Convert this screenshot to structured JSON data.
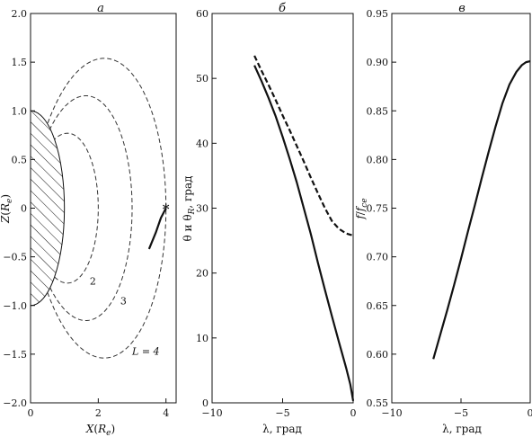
{
  "chart_data": [
    {
      "panel": "а",
      "type": "line",
      "xlabel": "X(R_e)",
      "ylabel": "Z(R_e)",
      "xlim": [
        0,
        4.3
      ],
      "ylim": [
        -2.0,
        2.0
      ],
      "xticks": [
        "0",
        "2",
        "4"
      ],
      "yticks": [
        "2.0",
        "1.5",
        "1.0",
        "0.5",
        "0",
        "−0.5",
        "−1.0",
        "−1.5",
        "−2.0"
      ],
      "earth": {
        "radius": 1,
        "hatched": true
      },
      "field_lines": [
        {
          "L": 2,
          "label": "2",
          "label_pos": [
            1.75,
            -0.75
          ],
          "style": "dashed"
        },
        {
          "L": 3,
          "label": "3",
          "label_pos": [
            2.65,
            -0.95
          ],
          "style": "dashed"
        },
        {
          "L": 4,
          "label": "L = 4",
          "label_pos": [
            3.0,
            -1.47
          ],
          "style": "dashed"
        }
      ],
      "ray_path": {
        "points": [
          [
            3.5,
            -0.42
          ],
          [
            3.7,
            -0.25
          ],
          [
            3.85,
            -0.1
          ],
          [
            4.0,
            0.0
          ]
        ],
        "start_marker": {
          "x": 4.0,
          "y": 0.0,
          "symbol": "*"
        }
      }
    },
    {
      "panel": "б",
      "type": "line",
      "xlabel": "λ, град",
      "ylabel": "θ и θR, град",
      "xlim": [
        -10,
        0
      ],
      "ylim": [
        0,
        60
      ],
      "xticks": [
        "−10",
        "−5",
        "0"
      ],
      "yticks": [
        "0",
        "10",
        "20",
        "30",
        "40",
        "50",
        "60"
      ],
      "series": [
        {
          "style": "solid",
          "x": [
            -7.0,
            -6.5,
            -6.0,
            -5.5,
            -5.0,
            -4.5,
            -4.0,
            -3.5,
            -3.0,
            -2.5,
            -2.0,
            -1.5,
            -1.0,
            -0.5,
            -0.2,
            0.0
          ],
          "y": [
            52.0,
            49.6,
            47.0,
            44.2,
            41.0,
            37.6,
            34.0,
            30.0,
            26.0,
            21.6,
            17.4,
            13.3,
            9.3,
            5.4,
            2.8,
            0.3
          ]
        },
        {
          "style": "dashed",
          "x": [
            -7.0,
            -6.5,
            -6.0,
            -5.5,
            -5.0,
            -4.5,
            -4.0,
            -3.5,
            -3.0,
            -2.5,
            -2.0,
            -1.5,
            -1.0,
            -0.5,
            -0.2,
            0.0
          ],
          "y": [
            53.5,
            51.2,
            49.0,
            46.7,
            44.3,
            42.0,
            39.6,
            37.2,
            34.7,
            32.3,
            30.0,
            28.0,
            26.8,
            26.1,
            25.9,
            25.8
          ]
        }
      ]
    },
    {
      "panel": "в",
      "type": "line",
      "xlabel": "λ, град",
      "ylabel": "f/f_ce",
      "xlim": [
        -10,
        0
      ],
      "ylim": [
        0.55,
        0.95
      ],
      "xticks": [
        "−10",
        "−5",
        "0"
      ],
      "yticks": [
        "0.55",
        "0.60",
        "0.65",
        "0.70",
        "0.75",
        "0.80",
        "0.85",
        "0.90",
        "0.95"
      ],
      "series": [
        {
          "style": "solid",
          "x": [
            -7.0,
            -6.5,
            -6.0,
            -5.5,
            -5.0,
            -4.5,
            -4.0,
            -3.5,
            -3.0,
            -2.5,
            -2.0,
            -1.5,
            -1.0,
            -0.6,
            -0.3,
            0.0
          ],
          "y": [
            0.595,
            0.62,
            0.645,
            0.671,
            0.698,
            0.726,
            0.753,
            0.781,
            0.808,
            0.834,
            0.858,
            0.877,
            0.89,
            0.897,
            0.9,
            0.901
          ]
        }
      ]
    }
  ]
}
